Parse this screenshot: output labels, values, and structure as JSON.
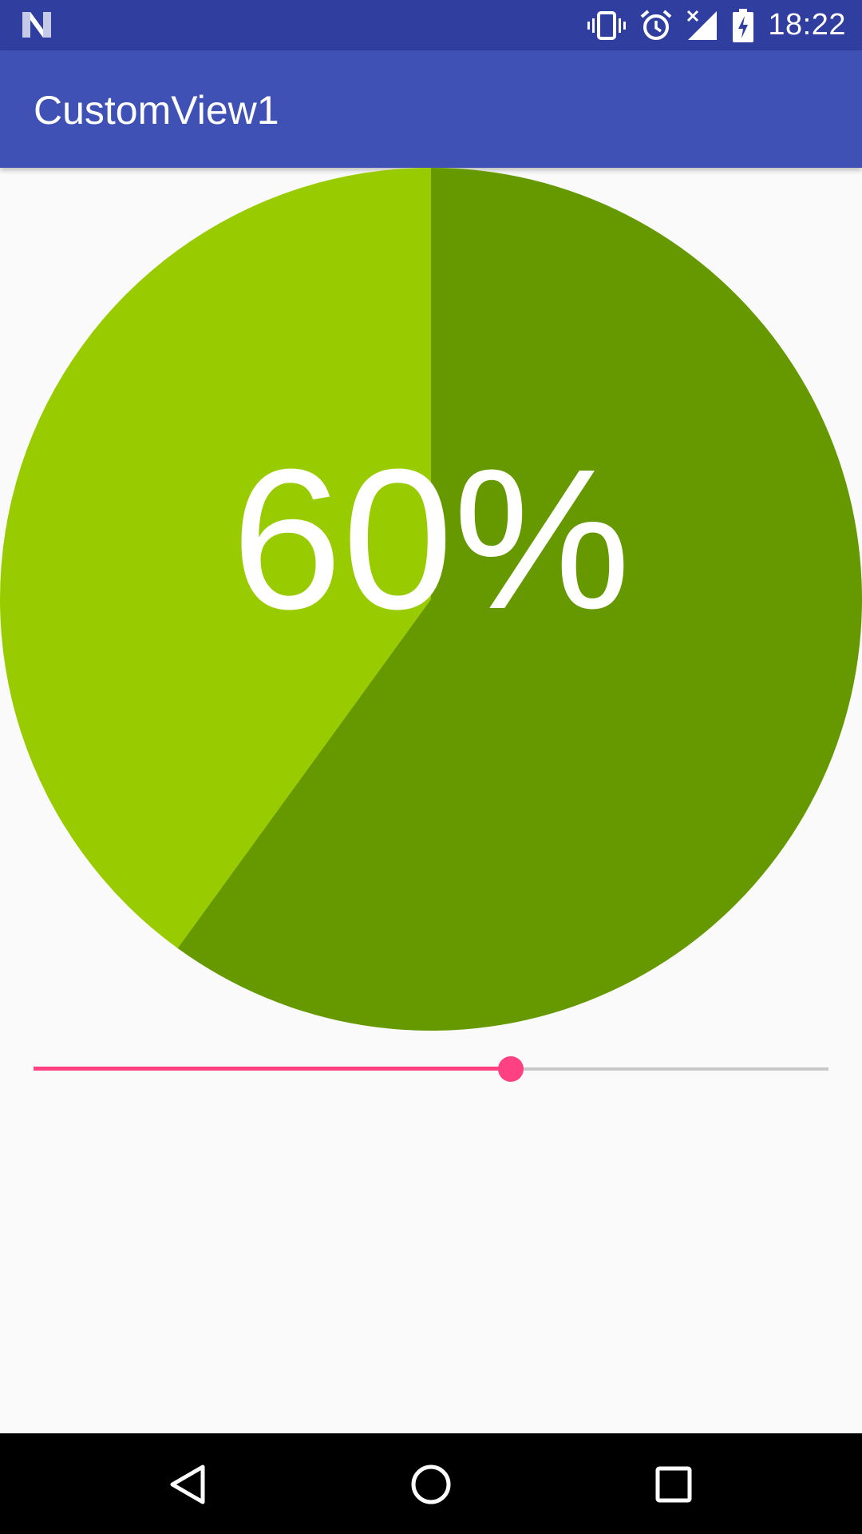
{
  "status_bar": {
    "time": "18:22",
    "icons": [
      "notification-n-icon",
      "vibrate-icon",
      "alarm-icon",
      "signal-no-data-icon",
      "battery-charging-icon"
    ]
  },
  "app_bar": {
    "title": "CustomView1"
  },
  "pie": {
    "percent_label": "60%",
    "value_fraction": 0.6,
    "colors": {
      "filled": "#669900",
      "remaining": "#99cc00"
    }
  },
  "seekbar": {
    "value_fraction": 0.6,
    "colors": {
      "active": "#ff4081",
      "inactive": "#c8c8c8"
    }
  },
  "nav_bar": {
    "icons": [
      "back-icon",
      "home-icon",
      "recents-icon"
    ]
  }
}
